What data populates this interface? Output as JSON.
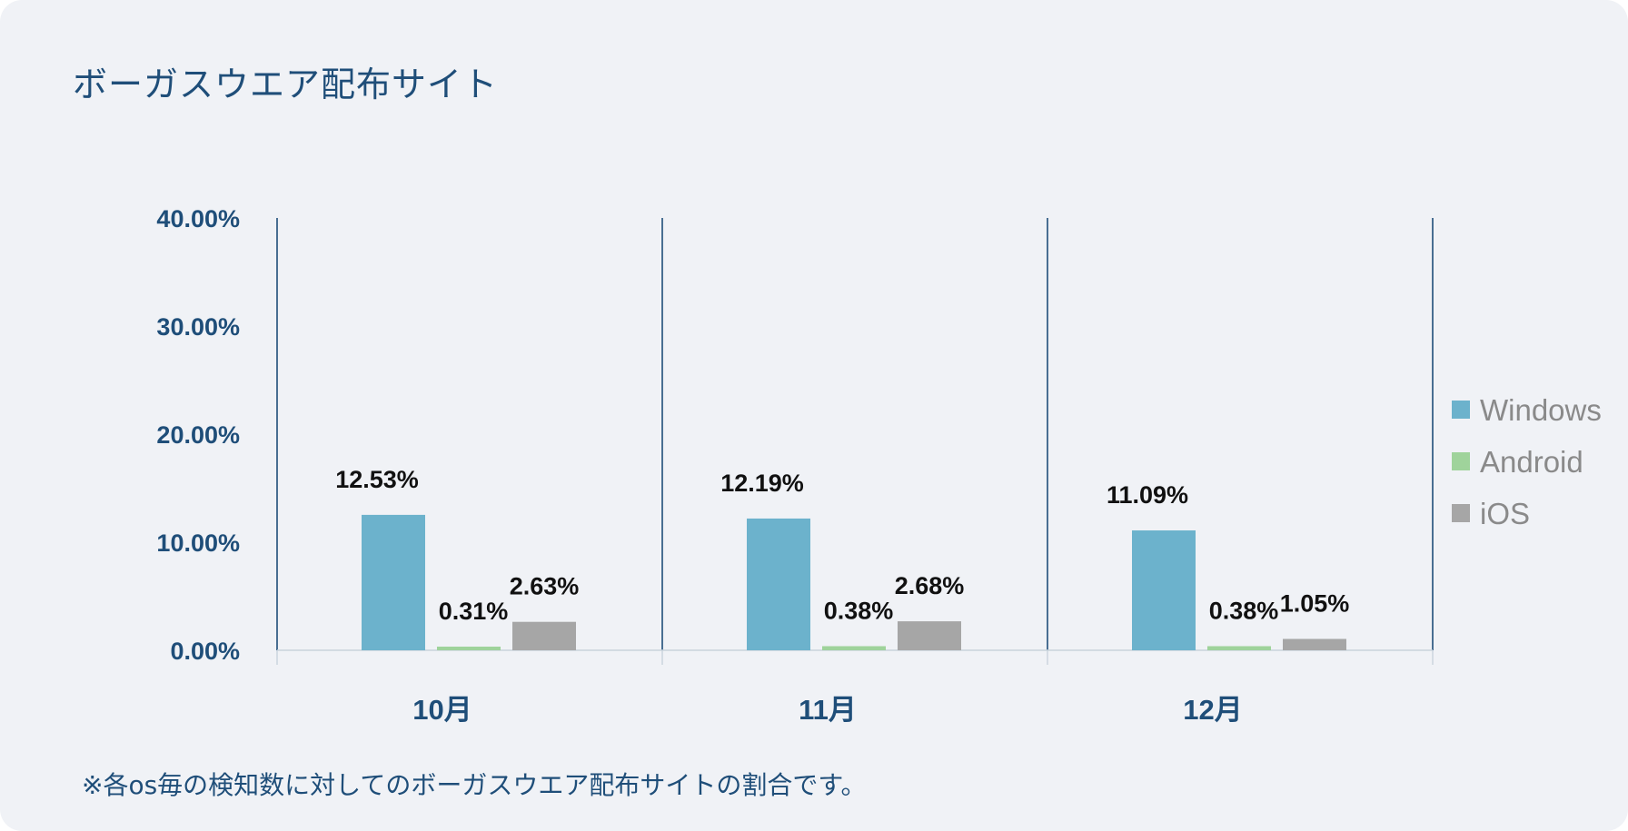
{
  "title": "ボーガスウエア配布サイト",
  "footnote": "※各os毎の検知数に対してのボーガスウエア配布サイトの割合です。",
  "chart_data": {
    "type": "bar",
    "title": "ボーガスウエア配布サイト",
    "categories": [
      "10月",
      "11月",
      "12月"
    ],
    "series": [
      {
        "name": "Windows",
        "values": [
          12.53,
          12.19,
          11.09
        ],
        "labels": [
          "12.53%",
          "12.19%",
          "11.09%"
        ],
        "color": "#6cb2cc"
      },
      {
        "name": "Android",
        "values": [
          0.31,
          0.38,
          0.38
        ],
        "labels": [
          "0.31%",
          "0.38%",
          "0.38%"
        ],
        "color": "#9fd39b"
      },
      {
        "name": "iOS",
        "values": [
          2.63,
          2.68,
          1.05
        ],
        "labels": [
          "2.63%",
          "2.68%",
          "1.05%"
        ],
        "color": "#a6a6a6"
      }
    ],
    "ylim": [
      0,
      40
    ],
    "yticks": [
      0,
      10,
      20,
      30,
      40
    ],
    "ytick_labels": [
      "0.00%",
      "10.00%",
      "20.00%",
      "30.00%",
      "40.00%"
    ],
    "legend": "right",
    "grid": false
  }
}
